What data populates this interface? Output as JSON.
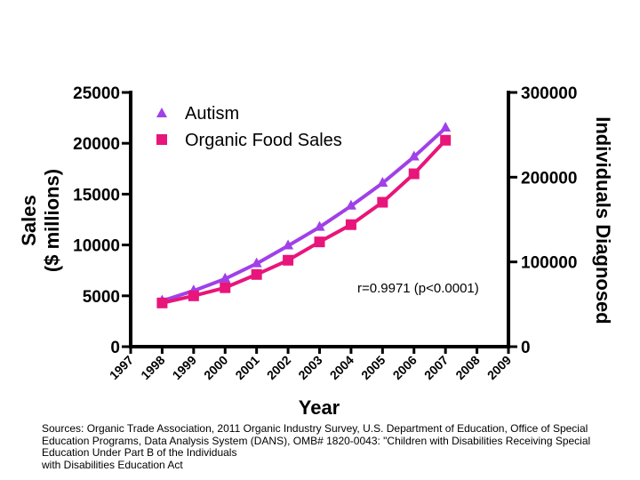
{
  "chart_data": {
    "type": "line",
    "x": [
      "1997",
      "1998",
      "1999",
      "2000",
      "2001",
      "2002",
      "2003",
      "2004",
      "2005",
      "2006",
      "2007",
      "2008",
      "2009"
    ],
    "xlabel": "Year",
    "ylabel_left_line1": "Sales",
    "ylabel_left_line2": "($ millions)",
    "ylabel_right": "Individuals Diagnosed",
    "ylim_left": [
      0,
      25000
    ],
    "ylim_right": [
      0,
      300000
    ],
    "yticks_left": [
      "0",
      "5000",
      "10000",
      "15000",
      "20000",
      "25000"
    ],
    "yticks_right": [
      "0",
      "100000",
      "200000",
      "300000"
    ],
    "series": [
      {
        "name": "Autism",
        "axis": "right",
        "marker": "triangle",
        "color": "#a040e8",
        "x": [
          "1998",
          "1999",
          "2000",
          "2001",
          "2002",
          "2003",
          "2004",
          "2005",
          "2006",
          "2007"
        ],
        "values": [
          54000,
          66000,
          80000,
          98000,
          119000,
          141000,
          166000,
          193000,
          224000,
          258000
        ]
      },
      {
        "name": "Organic Food Sales",
        "axis": "left",
        "marker": "square",
        "color": "#e8157a",
        "x": [
          "1998",
          "1999",
          "2000",
          "2001",
          "2002",
          "2003",
          "2004",
          "2005",
          "2006",
          "2007"
        ],
        "values": [
          4300,
          5000,
          5800,
          7100,
          8500,
          10300,
          12000,
          14200,
          17000,
          20300
        ]
      }
    ],
    "annotation": "r=0.9971 (p<0.0001)"
  },
  "sources": [
    "Sources: Organic Trade Association,  2011 Organic Industry Survey, U.S. Department of Education, Office of Special",
    "Education Programs, Data Analysis System (DANS), OMB# 1820-0043: \"Children with Disabilities Receiving Special",
    "Education Under Part B of the Individuals",
    "with Disabilities Education Act"
  ]
}
